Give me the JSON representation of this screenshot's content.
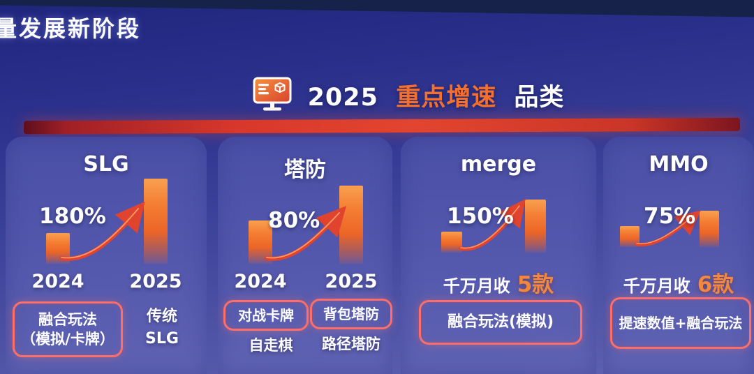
{
  "page_title": "量发展新阶段",
  "header": {
    "year": "2025",
    "highlight": "重点增速",
    "suffix": "品类",
    "icon": "monitor-cube-icon"
  },
  "colors": {
    "background_top": "#20257b",
    "background_bottom": "#5e61b0",
    "card": "#5458ad",
    "accent_orange": "#f5702c",
    "bar_orange": "#f47e33",
    "arrow_red": "#e0442e",
    "divider_red": "#d8382b",
    "tag_border": "#ff6e68",
    "text": "#ffffff"
  },
  "panels": [
    {
      "title": "SLG",
      "growth": "180%",
      "years": [
        "2024",
        "2025"
      ],
      "tags": {
        "boxed": "融合玩法\n（模拟/卡牌）",
        "plain": "传统\nSLG"
      }
    },
    {
      "title": "塔防",
      "growth": "80%",
      "years": [
        "2024",
        "2025"
      ],
      "tags": {
        "boxed1": "对战卡牌",
        "boxed2": "背包塔防",
        "plain1": "自走棋",
        "plain2": "路径塔防"
      }
    },
    {
      "title": "merge",
      "growth": "150%",
      "revenue_label": "千万月收",
      "revenue_count": "5款",
      "tags": {
        "boxed": "融合玩法(模拟)"
      }
    },
    {
      "title": "MMO",
      "growth": "75%",
      "revenue_label": "千万月收",
      "revenue_count": "6款",
      "tags": {
        "boxed": "提速数值+融合玩法"
      }
    }
  ],
  "chart_data": [
    {
      "type": "bar",
      "title": "SLG",
      "categories": [
        "2024",
        "2025"
      ],
      "values": [
        100,
        280
      ],
      "annotation": "180%",
      "ylabel": "relative scale (2024 = 100)",
      "legend": "none",
      "grid": false
    },
    {
      "type": "bar",
      "title": "塔防",
      "categories": [
        "2024",
        "2025"
      ],
      "values": [
        100,
        180
      ],
      "annotation": "80%",
      "ylabel": "relative scale (2024 = 100)",
      "legend": "none",
      "grid": false
    },
    {
      "type": "bar",
      "title": "merge",
      "categories": [
        "2024",
        "2025"
      ],
      "values": [
        100,
        250
      ],
      "annotation": "150%",
      "note": "千万月收 5款",
      "ylabel": "relative scale (2024 = 100)",
      "legend": "none",
      "grid": false
    },
    {
      "type": "bar",
      "title": "MMO",
      "categories": [
        "2024",
        "2025"
      ],
      "values": [
        100,
        175
      ],
      "annotation": "75%",
      "note": "千万月收 6款",
      "ylabel": "relative scale (2024 = 100)",
      "legend": "none",
      "grid": false
    }
  ]
}
